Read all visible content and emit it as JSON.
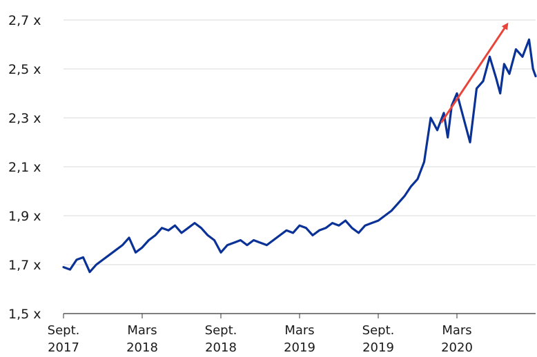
{
  "chart_data": {
    "type": "line",
    "title": "",
    "xlabel": "",
    "ylabel": "",
    "grid": true,
    "legend": "none",
    "ylim": [
      1.5,
      2.7
    ],
    "y_ticks": [
      "2,7 x",
      "2,5 x",
      "2,3 x",
      "2,1 x",
      "1,9 x",
      "1,7 x",
      "1,5 x"
    ],
    "y_tick_values": [
      2.7,
      2.5,
      2.3,
      2.1,
      1.9,
      1.7,
      1.5
    ],
    "x_ticks": [
      {
        "line1": "Sept.",
        "line2": "2017"
      },
      {
        "line1": "Mars",
        "line2": "2018"
      },
      {
        "line1": "Sept.",
        "line2": "2018"
      },
      {
        "line1": "Mars",
        "line2": "2019"
      },
      {
        "line1": "Sept.",
        "line2": "2019"
      },
      {
        "line1": "Mars",
        "line2": "2020"
      }
    ],
    "xlim": [
      0,
      36
    ],
    "series": [
      {
        "color": "#0a3296",
        "x": [
          0,
          0.5,
          1,
          1.5,
          2,
          2.5,
          3,
          3.5,
          4,
          4.5,
          5,
          5.5,
          6,
          6.5,
          7,
          7.5,
          8,
          8.5,
          9,
          9.5,
          10,
          10.5,
          11,
          11.5,
          12,
          12.5,
          13,
          13.5,
          14,
          14.5,
          15,
          15.5,
          16,
          16.5,
          17,
          17.5,
          18,
          18.5,
          19,
          19.5,
          20,
          20.5,
          21,
          21.5,
          22,
          22.5,
          23,
          23.5,
          24,
          24.5,
          25,
          25.5,
          26,
          26.5,
          27,
          27.5,
          28,
          28.5,
          29,
          29.3,
          29.6,
          30,
          30.5,
          31,
          31.5,
          32,
          32.5,
          33,
          33.3,
          33.6,
          34,
          34.5,
          35,
          35.5,
          35.8,
          36
        ],
        "values": [
          1.69,
          1.68,
          1.72,
          1.73,
          1.67,
          1.7,
          1.72,
          1.74,
          1.76,
          1.78,
          1.81,
          1.75,
          1.77,
          1.8,
          1.82,
          1.85,
          1.84,
          1.86,
          1.83,
          1.85,
          1.87,
          1.85,
          1.82,
          1.8,
          1.75,
          1.78,
          1.79,
          1.8,
          1.78,
          1.8,
          1.79,
          1.78,
          1.8,
          1.82,
          1.84,
          1.83,
          1.86,
          1.85,
          1.82,
          1.84,
          1.85,
          1.87,
          1.86,
          1.88,
          1.85,
          1.83,
          1.86,
          1.87,
          1.88,
          1.9,
          1.92,
          1.95,
          1.98,
          2.02,
          2.05,
          2.12,
          2.3,
          2.25,
          2.32,
          2.22,
          2.35,
          2.4,
          2.3,
          2.2,
          2.42,
          2.45,
          2.55,
          2.46,
          2.4,
          2.52,
          2.48,
          2.58,
          2.55,
          2.62,
          2.5,
          2.47
        ]
      }
    ],
    "annotation": {
      "type": "arrow",
      "color": "#e8443a",
      "x1": 28.8,
      "y1": 2.28,
      "x2": 33.8,
      "y2": 2.68
    }
  }
}
